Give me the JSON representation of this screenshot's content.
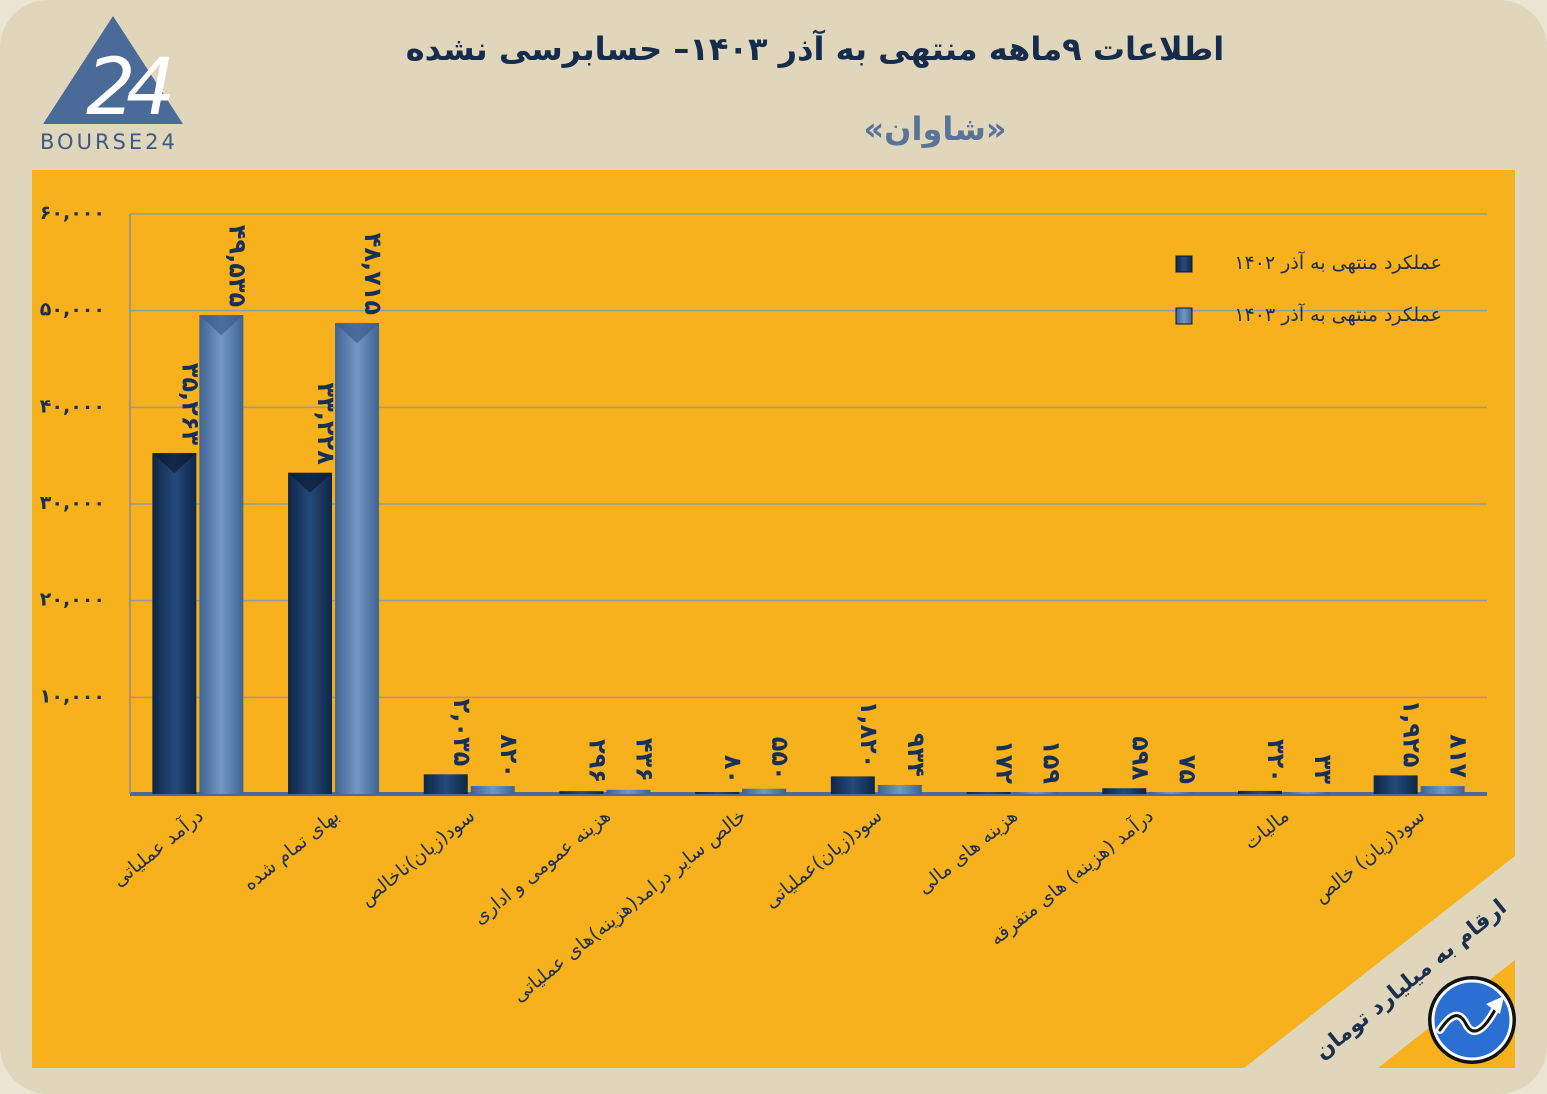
{
  "header": {
    "title": "اطلاعات ۹ماهه منتهی به آذر ۱۴۰۳– حسابرسی نشده",
    "subtitle": "«شاوان»",
    "logo_text": "BOURSE24"
  },
  "units_note": "ارقام به میلیارد تومان",
  "colors": {
    "background": "#e0d6bc",
    "panel": "#f6b11c",
    "series_1402": "#1b3a63",
    "series_1403": "#5b7fae",
    "title": "#152c4c"
  },
  "icons": [
    "bourse24-logo-icon",
    "trend-arrow-badge-icon"
  ],
  "chart_data": {
    "type": "bar",
    "categories": [
      "درآمد عملیاتی",
      "بهای تمام شده",
      "سود(زیان)ناخالص",
      "هزینه عمومی و اداری",
      "خالص سایر درامد(هزینه)های عملیاتی",
      "سود(زیان)عملیاتی",
      "هزینه های مالی",
      "درآمد (هزینه) های متفرقه",
      "مالیات",
      "سود(زیان) خالص"
    ],
    "series": [
      {
        "name": "عملکرد منتهی به آذر ۱۴۰۲",
        "values": [
          35263,
          33228,
          2035,
          296,
          80,
          1820,
          172,
          598,
          320,
          1925
        ],
        "labels": [
          "۳۵,۲۶۳",
          "۳۳,۲۲۸",
          "۲,۰۳۵",
          "۲۹۶",
          "۸۰",
          "۱,۸۲۰",
          "۱۷۲",
          "۵۹۸",
          "۳۲۰",
          "۱,۹۲۵"
        ]
      },
      {
        "name": "عملکرد منتهی به آذر ۱۴۰۳",
        "values": [
          49535,
          48715,
          820,
          436,
          550,
          934,
          159,
          75,
          33,
          817
        ],
        "labels": [
          "۴۹,۵۳۵",
          "۴۸,۷۱۵",
          "۸۲۰",
          "۴۳۶",
          "۵۵۰",
          "۹۳۴",
          "۱۵۹",
          "۷۵",
          "۳۳",
          "۸۱۷"
        ]
      }
    ],
    "y_ticks": [
      0,
      10000,
      20000,
      30000,
      40000,
      50000,
      60000
    ],
    "y_tick_labels": [
      "",
      "۱۰,۰۰۰",
      "۲۰,۰۰۰",
      "۳۰,۰۰۰",
      "۴۰,۰۰۰",
      "۵۰,۰۰۰",
      "۶۰,۰۰۰"
    ],
    "ylim": [
      0,
      60000
    ],
    "grid": true,
    "legend_position": "top-right"
  }
}
